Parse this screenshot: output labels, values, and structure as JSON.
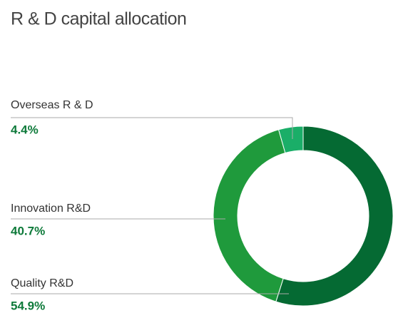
{
  "chart_data": {
    "type": "donut",
    "title": "R & D capital allocation",
    "categories": [
      "Overseas R & D",
      "Innovation R&D",
      "Quality R&D"
    ],
    "values": [
      4.4,
      40.7,
      54.9
    ],
    "value_labels": [
      "4.4%",
      "40.7%",
      "54.9%"
    ],
    "colors": [
      "#1aae68",
      "#1f9a3c",
      "#056a33"
    ]
  }
}
